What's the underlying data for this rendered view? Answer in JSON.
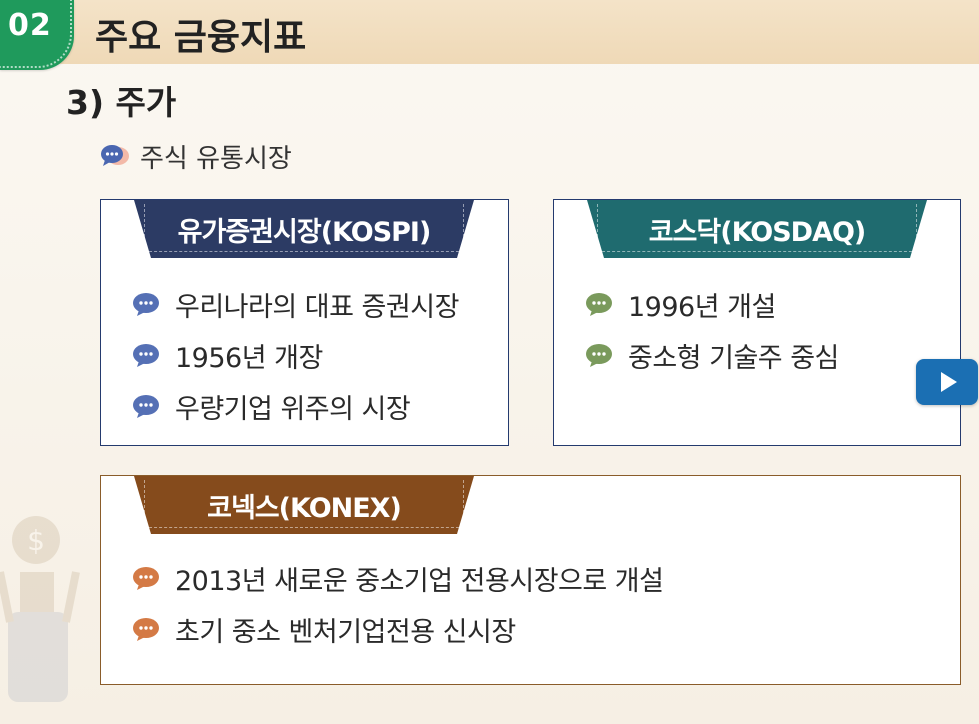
{
  "header": {
    "badge": "02",
    "title": "주요 금융지표"
  },
  "section": {
    "title": "3) 주가"
  },
  "subheading": {
    "label": "주식 유통시장"
  },
  "cards": {
    "kospi": {
      "title": "유가증권시장(KOSPI)",
      "items": [
        "우리나라의 대표 증권시장",
        "1956년 개장",
        "우량기업 위주의 시장"
      ]
    },
    "kosdaq": {
      "title": "코스닥(KOSDAQ)",
      "items": [
        "1996년 개설",
        "중소형 기술주 중심"
      ]
    },
    "konex": {
      "title": "코넥스(KONEX)",
      "items": [
        "2013년 새로운 중소기업 전용시장으로 개설",
        "초기 중소 벤처기업전용 신시장"
      ]
    }
  },
  "colors": {
    "badge": "#1f9a5c",
    "kospi_accent": "#2c3b64",
    "kosdaq_accent": "#1f6b6f",
    "konex_accent": "#854b1c",
    "kospi_bullet": "#5570b5",
    "kosdaq_bullet": "#7a9a5c",
    "konex_bullet": "#d47a45",
    "play_button": "#1b6fb3"
  },
  "icons": {
    "subheading": "speech-bubbles-icon",
    "bullet": "chat-bubble-icon",
    "play": "play-icon"
  }
}
